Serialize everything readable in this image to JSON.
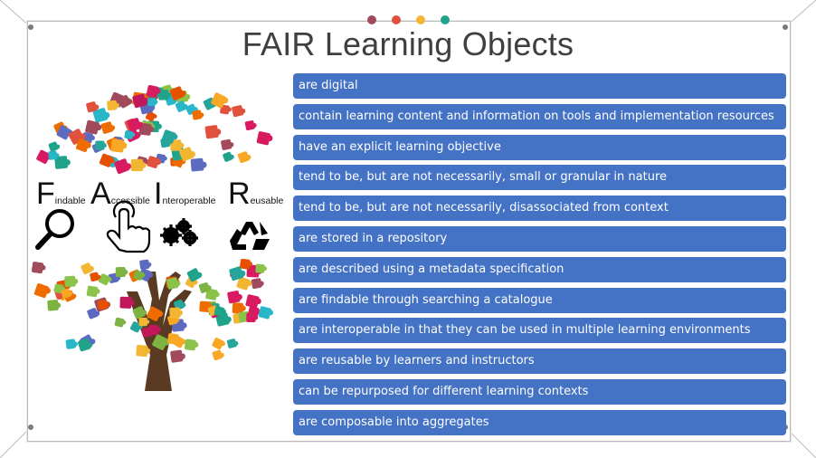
{
  "slide": {
    "title": "FAIR Learning Objects",
    "items": [
      "are digital",
      "contain learning content and information on tools and implementation resources",
      "have an explicit learning objective",
      "tend to be, but are not necessarily, small or granular in nature",
      "tend to be, but are not necessarily, disassociated from context",
      "are stored in a repository",
      "are described using a metadata specification",
      "are findable through searching a catalogue",
      "are interoperable in that they can be used in multiple learning environments",
      "are reusable by learners and instructors",
      "can be repurposed for different learning contexts",
      "are composable into aggregates"
    ]
  },
  "fair": {
    "letters": [
      "F",
      "A",
      "I",
      "R"
    ],
    "rest": [
      "indable",
      "ccessible",
      "nteroperable",
      "eusable"
    ],
    "icons": [
      "magnifier-icon",
      "hand-pointer-icon",
      "gears-icon",
      "recycle-icon"
    ]
  },
  "colors": {
    "item_bg": "#4472c4",
    "item_text": "#ffffff",
    "title": "#3f3f3f",
    "trunk": "#5a3a22",
    "dots": [
      "#a14a5c",
      "#e0523d",
      "#f2b632",
      "#1fa38a"
    ]
  }
}
